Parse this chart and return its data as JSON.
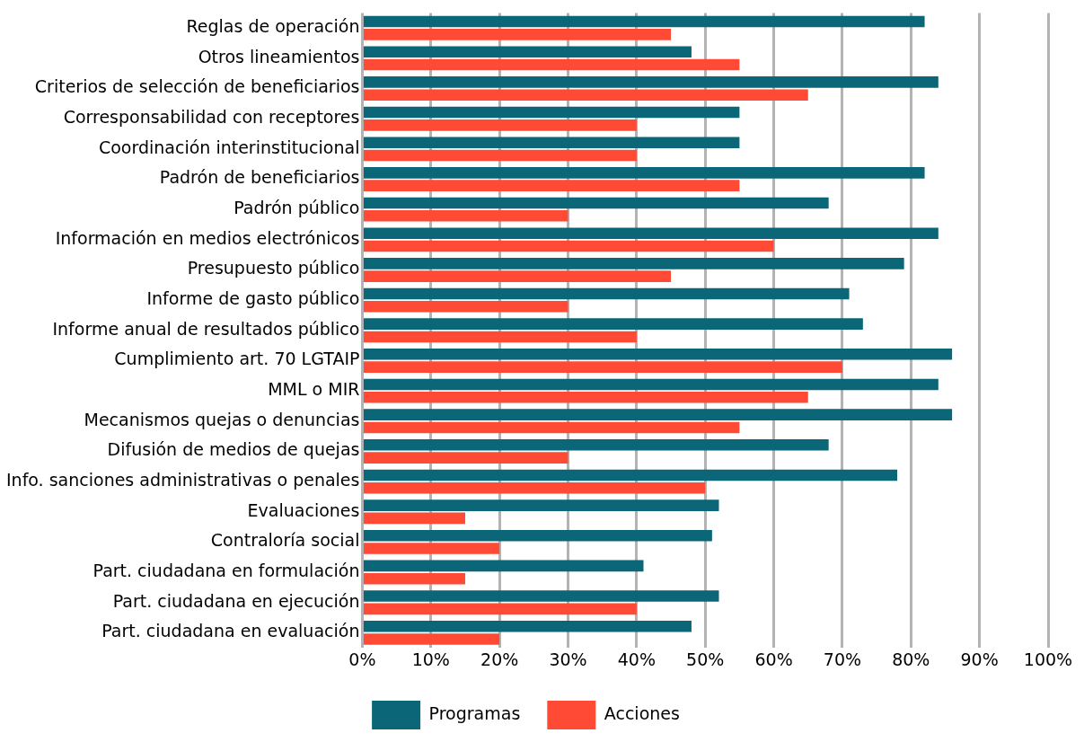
{
  "chart_data": {
    "type": "bar",
    "orientation": "horizontal",
    "categories": [
      "Reglas de operación",
      "Otros lineamientos",
      "Criterios de selección de beneficiarios",
      "Corresponsabilidad con receptores",
      "Coordinación interinstitucional",
      "Padrón de beneficiarios",
      "Padrón público",
      "Información en medios electrónicos",
      "Presupuesto público",
      "Informe de gasto público",
      "Informe anual de resultados público",
      "Cumplimiento art. 70 LGTAIP",
      "MML o MIR",
      "Mecanismos quejas o denuncias",
      "Difusión de medios de quejas",
      "Info. sanciones administrativas o penales",
      "Evaluaciones",
      "Contraloría social",
      "Part. ciudadana en formulación",
      "Part. ciudadana en ejecución",
      "Part. ciudadana en evaluación"
    ],
    "series": [
      {
        "name": "Programas",
        "color": "#0b6677",
        "values": [
          82,
          48,
          84,
          55,
          55,
          82,
          68,
          84,
          79,
          71,
          73,
          86,
          84,
          86,
          68,
          78,
          52,
          51,
          41,
          52,
          48
        ]
      },
      {
        "name": "Acciones",
        "color": "#ff4a36",
        "values": [
          45,
          55,
          65,
          40,
          40,
          55,
          30,
          60,
          45,
          30,
          40,
          70,
          65,
          55,
          30,
          50,
          15,
          20,
          15,
          40,
          20
        ]
      }
    ],
    "xlim": [
      0,
      100
    ],
    "xticks": [
      {
        "value": 0,
        "label": "0%"
      },
      {
        "value": 10,
        "label": "10%"
      },
      {
        "value": 20,
        "label": "20%"
      },
      {
        "value": 30,
        "label": "30%"
      },
      {
        "value": 40,
        "label": "40%"
      },
      {
        "value": 50,
        "label": "50%"
      },
      {
        "value": 60,
        "label": "60%"
      },
      {
        "value": 70,
        "label": "70%"
      },
      {
        "value": 80,
        "label": "80%"
      },
      {
        "value": 90,
        "label": "90%"
      },
      {
        "value": 100,
        "label": "100%"
      }
    ],
    "grid": "x",
    "legend": "bottom"
  }
}
